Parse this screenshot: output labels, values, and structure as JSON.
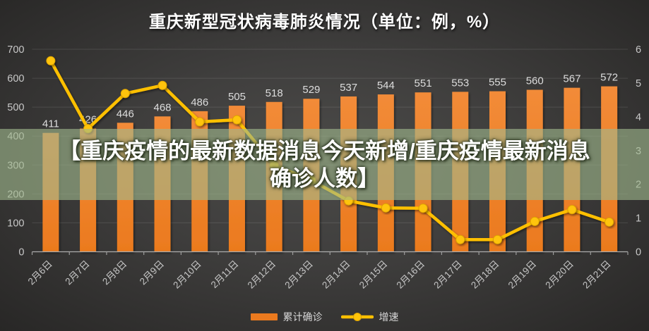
{
  "title": "重庆新型冠状病毒肺炎情况（单位：例，%）",
  "overlay": {
    "line1": "【重庆疫情的最新数据消息今天新增/重庆疫情最新消息",
    "line2": "确诊人数】",
    "band_color": "#A0B88C",
    "band_opacity": "0.62"
  },
  "colors": {
    "background": "#3F3E3D",
    "bar": "#EB7A1E",
    "line": "#FFC000",
    "axis_text": "#C9C9C9",
    "value_label": "#DDDDDD",
    "gridline": "rgba(255,255,255,0.11)"
  },
  "chart_data": {
    "type": "combo-bar-line",
    "title": "重庆新型冠状病毒肺炎情况（单位：例，%）",
    "categories": [
      "2月6日",
      "2月7日",
      "2月8日",
      "2月9日",
      "2月10日",
      "2月11日",
      "2月12日",
      "2月13日",
      "2月14日",
      "2月15日",
      "2月16日",
      "2月17日",
      "2月18日",
      "2月19日",
      "2月20日",
      "2月21日"
    ],
    "series": [
      {
        "name": "累计确诊",
        "type": "bar",
        "axis": "left",
        "color": "#EB7A1E",
        "values": [
          411,
          426,
          446,
          468,
          486,
          505,
          518,
          529,
          537,
          544,
          551,
          553,
          555,
          560,
          567,
          572
        ]
      },
      {
        "name": "增速",
        "type": "line",
        "axis": "right",
        "color": "#FFC000",
        "values": [
          5.66,
          3.65,
          4.69,
          4.93,
          3.85,
          3.91,
          2.57,
          2.12,
          1.51,
          1.3,
          1.29,
          0.36,
          0.36,
          0.9,
          1.25,
          0.88
        ]
      }
    ],
    "left_axis": {
      "min": 0,
      "max": 700,
      "step": 100
    },
    "right_axis": {
      "min": 0,
      "max": 6,
      "step": 1
    },
    "legend_position": "bottom",
    "grid": true,
    "x_labels_rotated_deg": -45
  }
}
